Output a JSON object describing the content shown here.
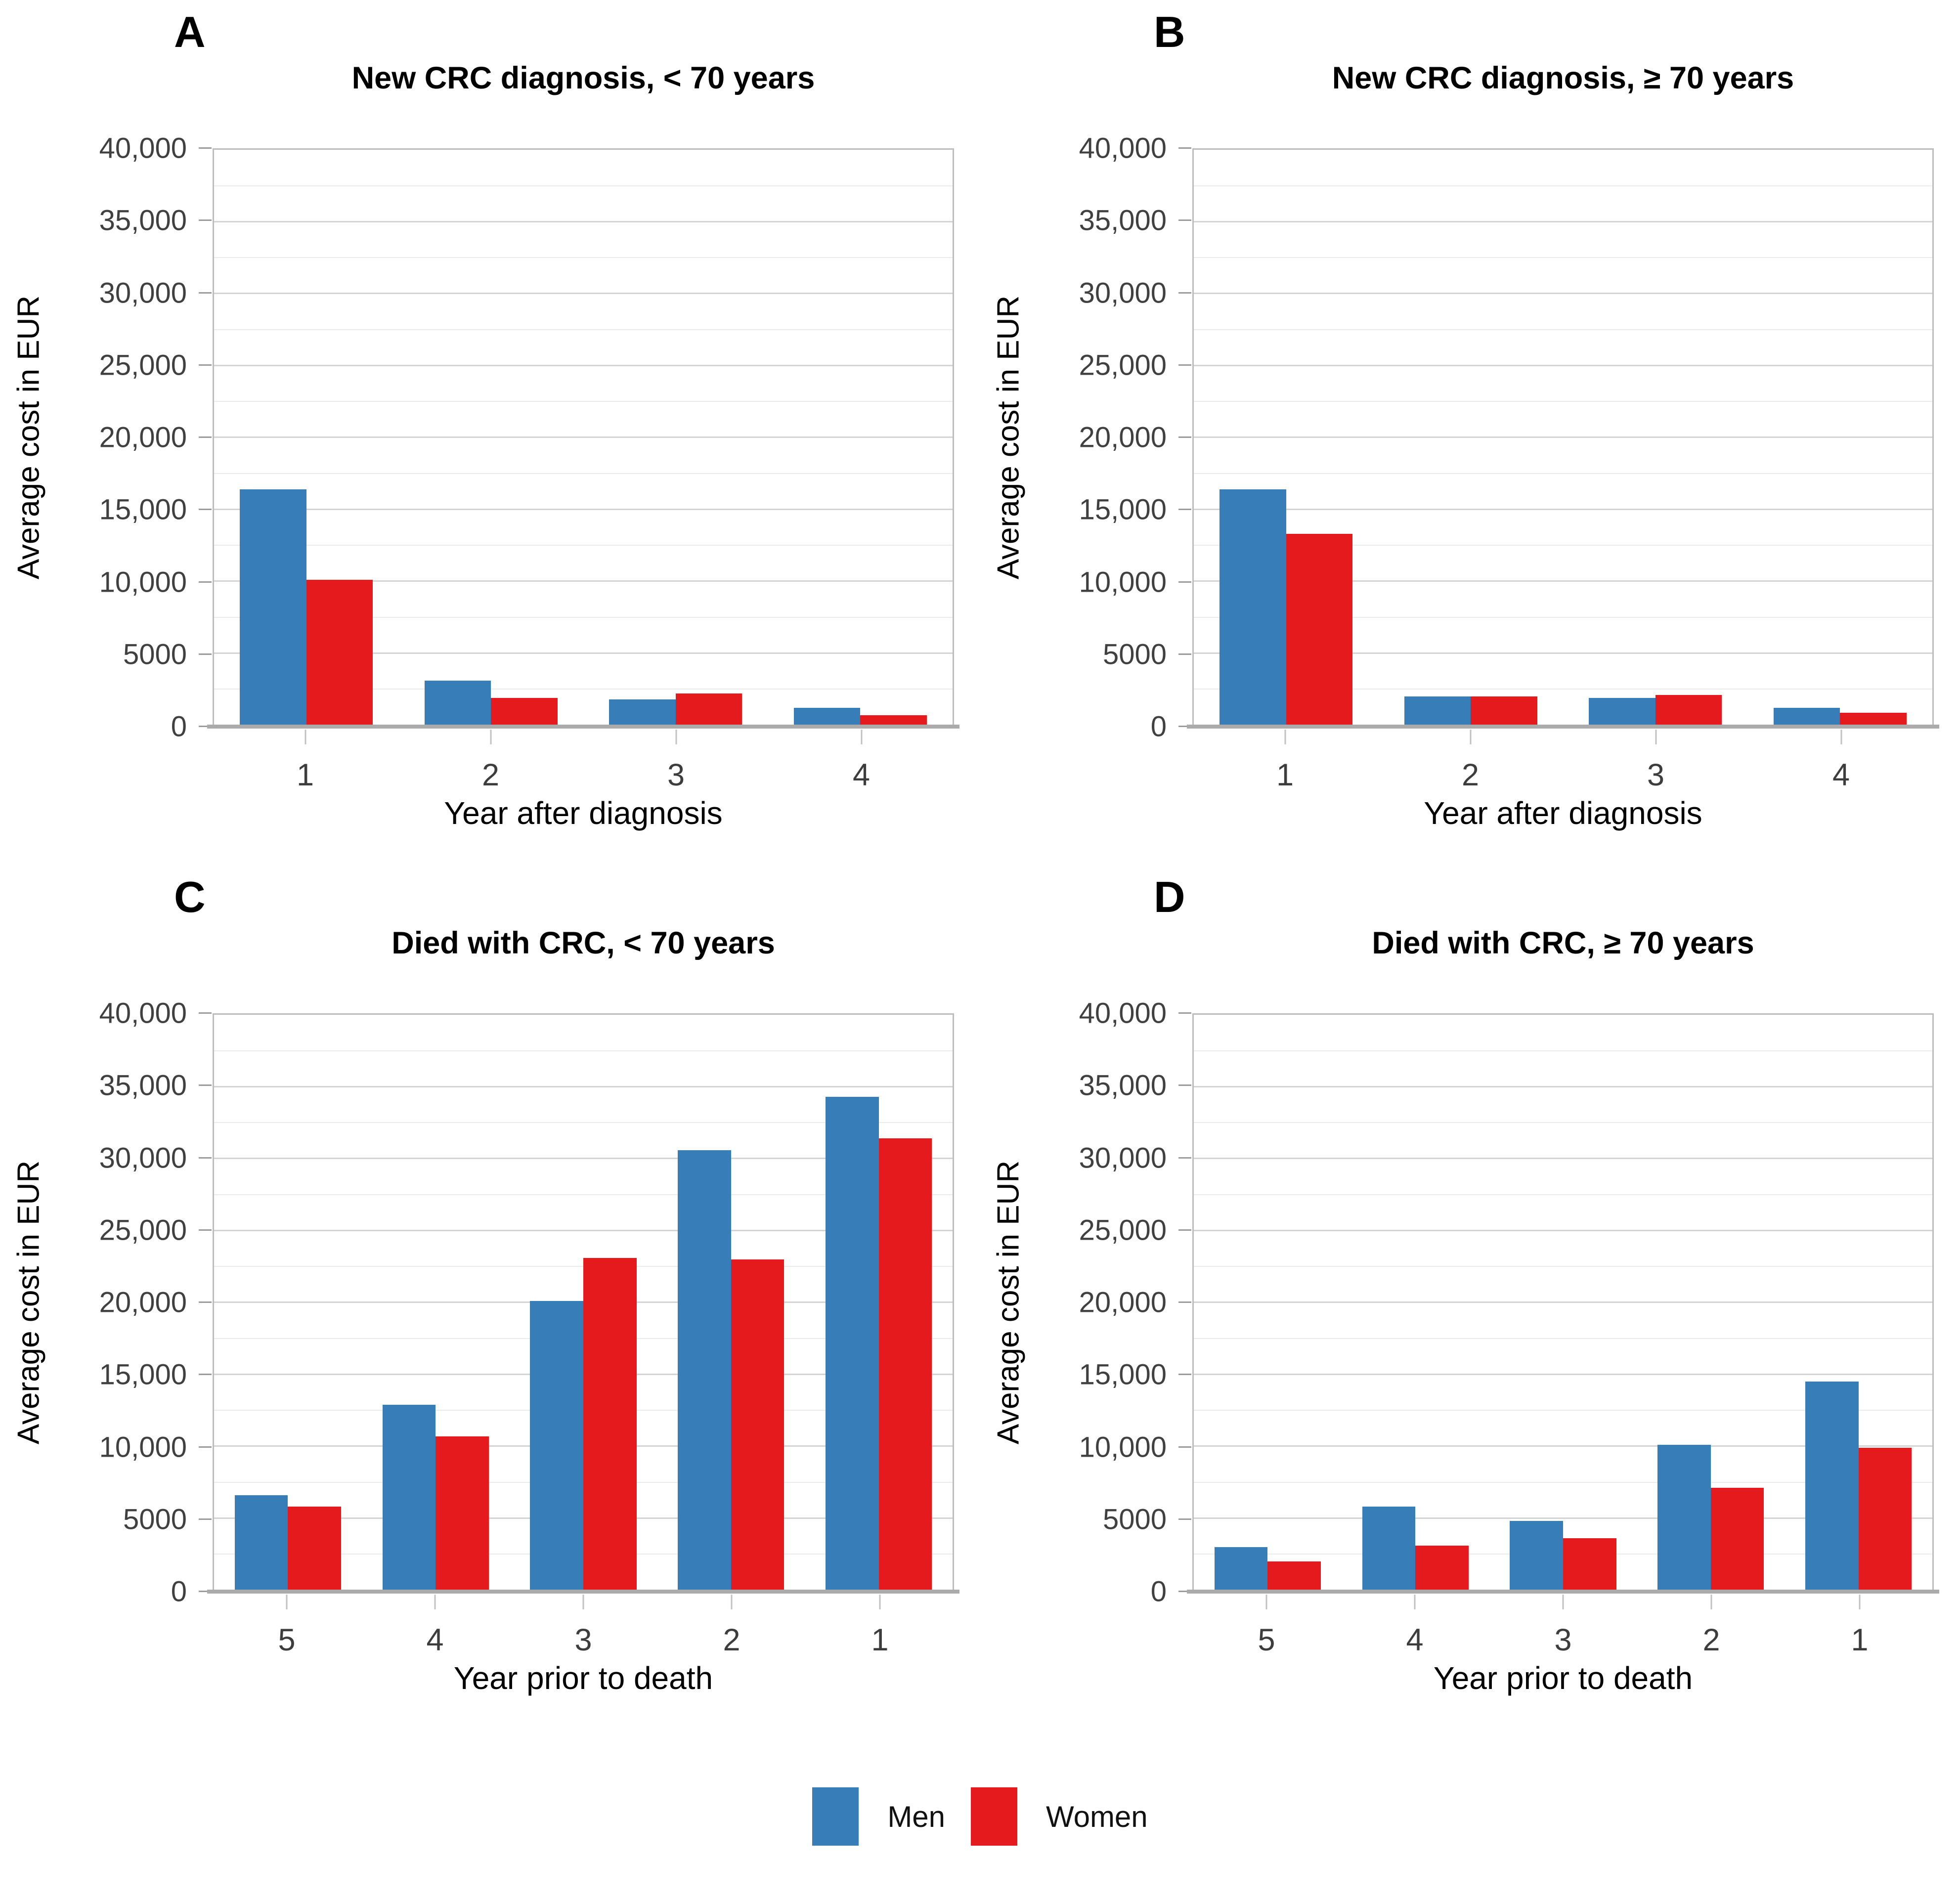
{
  "figure_title": "",
  "y_axis_max_label": "40,000",
  "legend": {
    "items": [
      {
        "label": "Men",
        "color": "#377EB8"
      },
      {
        "label": "Women",
        "color": "#E41A1C"
      }
    ]
  },
  "chart_data": [
    {
      "type": "bar",
      "panel_label": "A",
      "title": "New CRC diagnosis, < 70 years",
      "xlabel": "Year after diagnosis",
      "ylabel": "Average cost in EUR",
      "categories": [
        "1",
        "2",
        "3",
        "4"
      ],
      "series": [
        {
          "name": "Men",
          "color": "#377EB8",
          "values": [
            16400,
            3100,
            1800,
            1200
          ]
        },
        {
          "name": "Women",
          "color": "#E41A1C",
          "values": [
            10100,
            1900,
            2200,
            700
          ]
        }
      ],
      "ylim": [
        0,
        40000
      ],
      "major_step": 5000,
      "minor_step": 2500,
      "grid": "on",
      "ytick_labels": [
        "0",
        "5000",
        "10,000",
        "15,000",
        "20,000",
        "25,000",
        "30,000",
        "35,000",
        "40,000"
      ]
    },
    {
      "type": "bar",
      "panel_label": "B",
      "title": "New CRC diagnosis, ≥ 70 years",
      "xlabel": "Year after diagnosis",
      "ylabel": "Average cost in EUR",
      "categories": [
        "1",
        "2",
        "3",
        "4"
      ],
      "series": [
        {
          "name": "Men",
          "color": "#377EB8",
          "values": [
            16400,
            2000,
            1900,
            1200
          ]
        },
        {
          "name": "Women",
          "color": "#E41A1C",
          "values": [
            13300,
            2000,
            2100,
            850
          ]
        }
      ],
      "ylim": [
        0,
        40000
      ],
      "major_step": 5000,
      "minor_step": 2500,
      "grid": "on",
      "ytick_labels": [
        "0",
        "5000",
        "10,000",
        "15,000",
        "20,000",
        "25,000",
        "30,000",
        "35,000",
        "40,000"
      ]
    },
    {
      "type": "bar",
      "panel_label": "C",
      "title": "Died with CRC, < 70 years",
      "xlabel": "Year prior to death",
      "ylabel": "Average cost in EUR",
      "categories": [
        "5",
        "4",
        "3",
        "2",
        "1"
      ],
      "series": [
        {
          "name": "Men",
          "color": "#377EB8",
          "values": [
            6600,
            12900,
            20100,
            30600,
            34300
          ]
        },
        {
          "name": "Women",
          "color": "#E41A1C",
          "values": [
            5800,
            10700,
            23100,
            23000,
            31400
          ]
        }
      ],
      "ylim": [
        0,
        40000
      ],
      "major_step": 5000,
      "minor_step": 2500,
      "grid": "on",
      "ytick_labels": [
        "0",
        "5000",
        "10,000",
        "15,000",
        "20,000",
        "25,000",
        "30,000",
        "35,000",
        "40,000"
      ]
    },
    {
      "type": "bar",
      "panel_label": "D",
      "title": "Died with CRC, ≥ 70 years",
      "xlabel": "Year prior to death",
      "ylabel": "Average cost in EUR",
      "categories": [
        "5",
        "4",
        "3",
        "2",
        "1"
      ],
      "series": [
        {
          "name": "Men",
          "color": "#377EB8",
          "values": [
            3000,
            5800,
            4800,
            10100,
            14500
          ]
        },
        {
          "name": "Women",
          "color": "#E41A1C",
          "values": [
            2000,
            3100,
            3600,
            7100,
            9900
          ]
        }
      ],
      "ylim": [
        0,
        40000
      ],
      "major_step": 5000,
      "minor_step": 2500,
      "grid": "on",
      "ytick_labels": [
        "0",
        "5000",
        "10,000",
        "15,000",
        "20,000",
        "25,000",
        "30,000",
        "35,000",
        "40,000"
      ]
    }
  ]
}
